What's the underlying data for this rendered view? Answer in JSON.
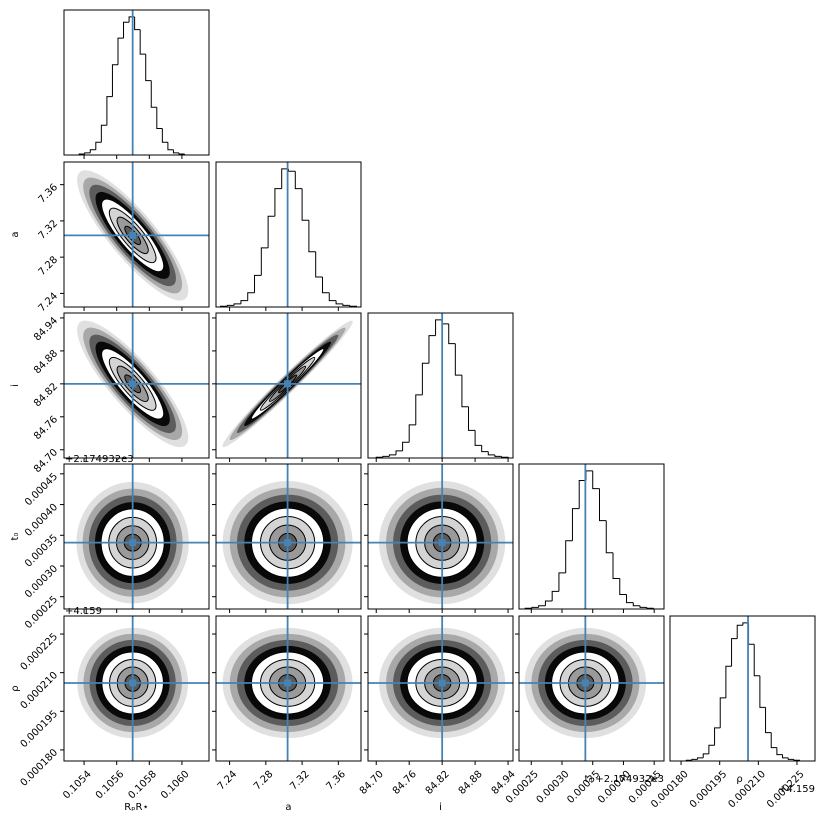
{
  "chart_data": {
    "type": "corner",
    "truth_color": "#4682b4",
    "hist_color": "#000000",
    "parameters": [
      {
        "label": "RₚR⋆",
        "truth": 0.105698,
        "lim": [
          0.105277,
          0.106166
        ],
        "ticks": [
          0.1054,
          0.1056,
          0.1058,
          {
            "value": 0.106,
            "label": "0.1060"
          }
        ],
        "bins": [
          0.10537,
          0.105404,
          0.105438,
          0.105472,
          0.105506,
          0.10554,
          0.105574,
          0.105608,
          0.105642,
          0.105676,
          0.10571,
          0.105744,
          0.105778,
          0.105812,
          0.105846,
          0.10588,
          0.105914,
          0.105948,
          0.105982,
          0.106016,
          0.10605
        ],
        "counts": [
          1,
          2,
          5,
          12,
          28,
          55,
          85,
          110,
          125,
          130,
          118,
          95,
          70,
          45,
          25,
          12,
          5,
          2,
          1,
          0
        ]
      },
      {
        "label": "a",
        "truth": 7.304,
        "lim": [
          7.225,
          7.385
        ],
        "ticks": [
          7.24,
          7.28,
          7.32,
          7.36
        ],
        "bins": [
          7.23,
          7.2375,
          7.245,
          7.2525,
          7.26,
          7.2675,
          7.275,
          7.2825,
          7.29,
          7.2975,
          7.305,
          7.3125,
          7.32,
          7.3275,
          7.335,
          7.3425,
          7.35,
          7.3575,
          7.365,
          7.3725,
          7.38
        ],
        "counts": [
          1,
          2,
          4,
          8,
          18,
          40,
          75,
          115,
          150,
          175,
          172,
          150,
          110,
          70,
          38,
          18,
          8,
          4,
          2,
          1
        ]
      },
      {
        "label": "i",
        "truth": 84.82,
        "lim": [
          84.685,
          84.949
        ],
        "ticks": [
          {
            "value": 84.7,
            "label": "84.70"
          },
          84.76,
          84.82,
          84.88,
          84.94
        ],
        "bins": [
          84.7,
          84.712,
          84.724,
          84.736,
          84.748,
          84.76,
          84.772,
          84.784,
          84.796,
          84.808,
          84.82,
          84.832,
          84.844,
          84.856,
          84.868,
          84.88,
          84.892,
          84.904,
          84.916,
          84.928,
          84.94
        ],
        "counts": [
          1,
          2,
          4,
          9,
          20,
          42,
          80,
          120,
          155,
          175,
          170,
          145,
          105,
          65,
          35,
          16,
          8,
          4,
          2,
          1
        ]
      },
      {
        "label": "t₀",
        "offset": "+2.174932e3",
        "truth": 0.000338,
        "lim": [
          0.00023,
          0.000466
        ],
        "ticks": [
          0.00025,
          {
            "value": 0.0003,
            "label": "0.00030"
          },
          0.00035,
          {
            "value": 0.0004,
            "label": "0.00040"
          },
          0.00045
        ],
        "bins": [
          0.00024,
          0.000251,
          0.000262,
          0.000273,
          0.000284,
          0.000295,
          0.000306,
          0.000317,
          0.000328,
          0.000339,
          0.00035,
          0.000361,
          0.000372,
          0.000383,
          0.000394,
          0.000405,
          0.000416,
          0.000427,
          0.000438,
          0.000449,
          0.00046
        ],
        "counts": [
          1,
          2,
          4,
          10,
          22,
          45,
          85,
          125,
          160,
          172,
          150,
          110,
          70,
          38,
          18,
          8,
          4,
          2,
          1,
          0
        ]
      },
      {
        "label": "ρ",
        "offset": "+4.159",
        "truth": 0.000206,
        "lim": [
          0.0001757,
          0.000232
        ],
        "ticks": [
          {
            "value": 0.00018,
            "label": "0.000180"
          },
          0.000195,
          {
            "value": 0.00021,
            "label": "0.000210"
          },
          0.000225
        ],
        "bins": [
          0.000182,
          0.0001842,
          0.0001864,
          0.0001886,
          0.0001908,
          0.000193,
          0.0001952,
          0.0001974,
          0.0001996,
          0.0002018,
          0.000204,
          0.0002062,
          0.0002084,
          0.0002106,
          0.0002128,
          0.000215,
          0.0002172,
          0.0002194,
          0.0002216,
          0.0002238,
          0.000226
        ],
        "counts": [
          1,
          2,
          4,
          9,
          20,
          42,
          80,
          120,
          155,
          172,
          175,
          148,
          108,
          68,
          36,
          17,
          8,
          4,
          2,
          1
        ]
      }
    ],
    "correlations": [
      [],
      [
        -0.86
      ],
      [
        -0.86,
        0.985
      ],
      [
        0,
        0,
        0
      ],
      [
        0,
        0,
        0,
        0
      ]
    ]
  }
}
